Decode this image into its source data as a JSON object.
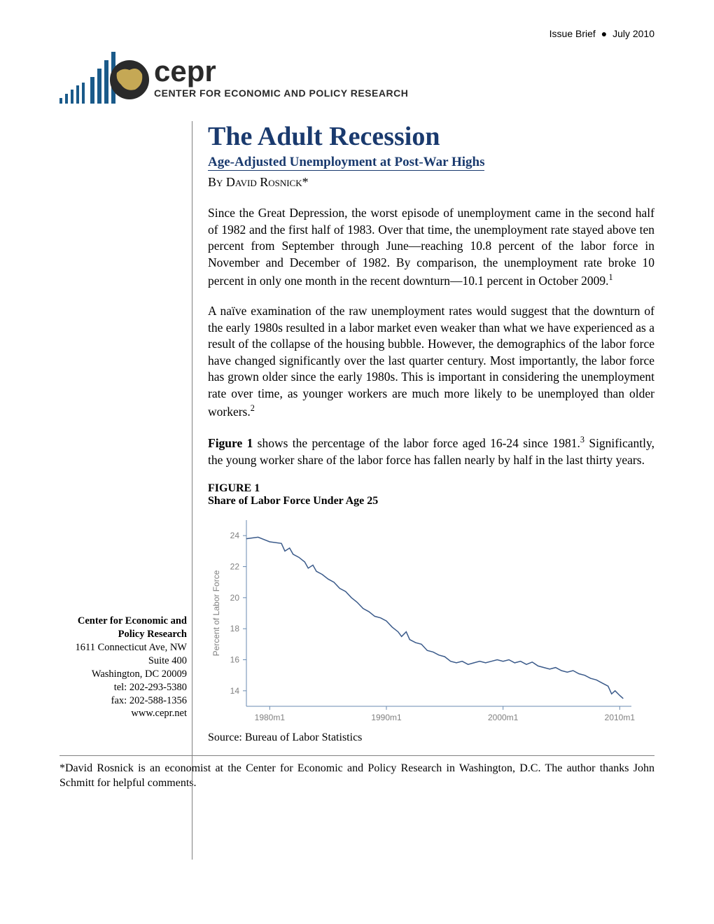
{
  "header": {
    "issue_label": "Issue Brief",
    "date": "July 2010"
  },
  "logo": {
    "org_abbr": "cepr",
    "org_name": "CENTER FOR ECONOMIC AND POLICY RESEARCH",
    "bar_color": "#1a5a8a",
    "globe_color": "#2a2a2a",
    "land_color": "#c5a855"
  },
  "title": {
    "main": "The Adult Recession",
    "sub": "Age-Adjusted Unemployment at Post-War Highs",
    "byline": "By David Rosnick*",
    "color": "#1a3a6e"
  },
  "paragraphs": {
    "p1": "Since the Great Depression, the worst episode of unemployment came in the second half of 1982 and the first half of 1983. Over that time, the unemployment rate stayed above ten percent from September through June—reaching 10.8 percent of the labor force in November and December of 1982. By comparison, the unemployment rate broke 10 percent in only one month in the recent downturn—10.1 percent in October 2009.",
    "p1_fn": "1",
    "p2": "A naïve examination of the raw unemployment rates would suggest that the downturn of the early 1980s resulted in a labor market even weaker than what we have experienced as a result of the collapse of the housing bubble. However, the demographics of the labor force have changed significantly over the last quarter century. Most importantly, the labor force has grown older since the early 1980s. This is important in considering the unemployment rate over time, as younger workers are much more likely to be unemployed than older workers.",
    "p2_fn": "2",
    "p3a": "Figure 1",
    "p3b": " shows the percentage of the labor force aged 16-24 since 1981.",
    "p3_fn": "3",
    "p3c": " Significantly, the young worker share of the labor force has fallen nearly by half in the last thirty years."
  },
  "figure": {
    "label": "FIGURE 1",
    "title": "Share of Labor Force Under Age 25",
    "source": "Source: Bureau of Labor Statistics",
    "ylabel": "Percent of Labor Force",
    "ylim": [
      13,
      25
    ],
    "yticks": [
      14,
      16,
      18,
      20,
      22,
      24
    ],
    "xticks": [
      "1980m1",
      "1990m1",
      "2000m1",
      "2010m1"
    ],
    "xlim": [
      1978,
      2011
    ],
    "line_color": "#3a5a8a",
    "axis_color": "#6a8ab0",
    "tick_color": "#808080",
    "label_color": "#808080",
    "background": "#ffffff",
    "font_size_axis": 12,
    "data": [
      [
        1978,
        23.8
      ],
      [
        1979,
        23.9
      ],
      [
        1980,
        23.6
      ],
      [
        1981,
        23.5
      ],
      [
        1981.3,
        23.0
      ],
      [
        1981.7,
        23.2
      ],
      [
        1982,
        22.8
      ],
      [
        1982.5,
        22.6
      ],
      [
        1983,
        22.3
      ],
      [
        1983.3,
        21.9
      ],
      [
        1983.7,
        22.1
      ],
      [
        1984,
        21.7
      ],
      [
        1984.5,
        21.5
      ],
      [
        1985,
        21.2
      ],
      [
        1985.5,
        21.0
      ],
      [
        1986,
        20.6
      ],
      [
        1986.5,
        20.4
      ],
      [
        1987,
        20.0
      ],
      [
        1987.5,
        19.7
      ],
      [
        1988,
        19.3
      ],
      [
        1988.5,
        19.1
      ],
      [
        1989,
        18.8
      ],
      [
        1989.5,
        18.7
      ],
      [
        1990,
        18.5
      ],
      [
        1990.5,
        18.1
      ],
      [
        1991,
        17.8
      ],
      [
        1991.3,
        17.5
      ],
      [
        1991.7,
        17.8
      ],
      [
        1992,
        17.3
      ],
      [
        1992.5,
        17.1
      ],
      [
        1993,
        17.0
      ],
      [
        1993.5,
        16.6
      ],
      [
        1994,
        16.5
      ],
      [
        1994.5,
        16.3
      ],
      [
        1995,
        16.2
      ],
      [
        1995.5,
        15.9
      ],
      [
        1996,
        15.8
      ],
      [
        1996.5,
        15.9
      ],
      [
        1997,
        15.7
      ],
      [
        1997.5,
        15.8
      ],
      [
        1998,
        15.9
      ],
      [
        1998.5,
        15.8
      ],
      [
        1999,
        15.9
      ],
      [
        1999.5,
        16.0
      ],
      [
        2000,
        15.9
      ],
      [
        2000.5,
        16.0
      ],
      [
        2001,
        15.8
      ],
      [
        2001.5,
        15.9
      ],
      [
        2002,
        15.7
      ],
      [
        2002.5,
        15.85
      ],
      [
        2003,
        15.6
      ],
      [
        2003.5,
        15.5
      ],
      [
        2004,
        15.4
      ],
      [
        2004.5,
        15.5
      ],
      [
        2005,
        15.3
      ],
      [
        2005.5,
        15.2
      ],
      [
        2006,
        15.3
      ],
      [
        2006.5,
        15.1
      ],
      [
        2007,
        15.0
      ],
      [
        2007.5,
        14.8
      ],
      [
        2008,
        14.7
      ],
      [
        2008.5,
        14.5
      ],
      [
        2009,
        14.3
      ],
      [
        2009.3,
        13.8
      ],
      [
        2009.6,
        14.0
      ],
      [
        2010,
        13.7
      ],
      [
        2010.3,
        13.5
      ]
    ]
  },
  "contact": {
    "line1": "Center for Economic and",
    "line2": "Policy Research",
    "line3": "1611 Connecticut Ave, NW",
    "line4": "Suite 400",
    "line5": "Washington, DC 20009",
    "line6": "tel: 202-293-5380",
    "line7": "fax: 202-588-1356",
    "line8": "www.cepr.net"
  },
  "footnote": "*David Rosnick is an economist at the Center for Economic and Policy Research in Washington, D.C. The author thanks John Schmitt for helpful comments."
}
